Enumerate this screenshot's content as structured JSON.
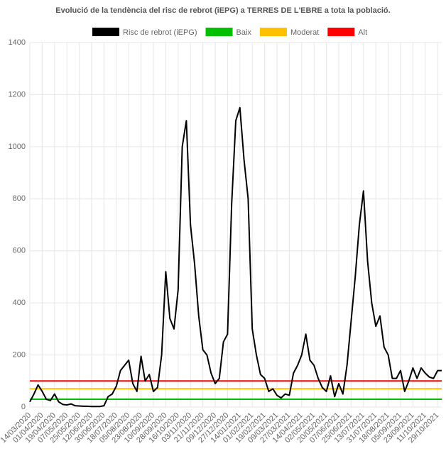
{
  "chart_data": {
    "type": "line",
    "title": "Evolució de la tendència del risc de rebrot (iEPG) a TERRES DE L'EBRE a tota la població.",
    "categories": [
      "14/03/2020",
      null,
      null,
      "01/04/2020",
      null,
      null,
      "19/04/2020",
      null,
      null,
      "07/05/2020",
      null,
      null,
      "25/05/2020",
      null,
      null,
      "12/06/2020",
      null,
      null,
      "30/06/2020",
      null,
      null,
      "18/07/2020",
      null,
      null,
      "05/08/2020",
      null,
      null,
      "23/08/2020",
      null,
      null,
      "10/09/2020",
      null,
      null,
      "28/09/2020",
      null,
      null,
      "16/10/2020",
      null,
      null,
      "03/11/2020",
      null,
      null,
      "21/11/2020",
      null,
      null,
      "09/12/2020",
      null,
      null,
      "27/12/2020",
      null,
      null,
      "14/01/2021",
      null,
      null,
      "01/02/2021",
      null,
      null,
      "19/02/2021",
      null,
      null,
      "09/03/2021",
      null,
      null,
      "27/03/2021",
      null,
      null,
      "14/04/2021",
      null,
      null,
      "02/05/2021",
      null,
      null,
      "20/05/2021",
      null,
      null,
      "07/06/2021",
      null,
      null,
      "25/06/2021",
      null,
      null,
      "13/07/2021",
      null,
      null,
      "31/07/2021",
      null,
      null,
      "18/08/2021",
      null,
      null,
      "05/09/2021",
      null,
      null,
      "23/09/2021",
      null,
      null,
      "11/10/2021",
      null,
      null,
      "29/10/2021",
      null
    ],
    "series": [
      {
        "name": "Risc de rebrot (iEPG)",
        "color": "#000000",
        "values": [
          20,
          50,
          85,
          60,
          30,
          25,
          50,
          20,
          10,
          8,
          12,
          5,
          4,
          3,
          3,
          2,
          2,
          2,
          5,
          40,
          50,
          80,
          140,
          160,
          180,
          90,
          60,
          195,
          100,
          125,
          60,
          75,
          200,
          520,
          340,
          300,
          450,
          1000,
          1100,
          700,
          550,
          350,
          220,
          200,
          130,
          90,
          110,
          250,
          280,
          780,
          1100,
          1150,
          950,
          800,
          300,
          200,
          125,
          110,
          60,
          70,
          45,
          35,
          50,
          45,
          130,
          160,
          200,
          280,
          180,
          160,
          110,
          75,
          60,
          120,
          40,
          90,
          50,
          160,
          330,
          500,
          700,
          830,
          560,
          400,
          310,
          350,
          230,
          200,
          110,
          110,
          140,
          60,
          100,
          150,
          110,
          150,
          130,
          115,
          110,
          140,
          140
        ]
      },
      {
        "name": "Baix",
        "color": "#00c000",
        "value": 30
      },
      {
        "name": "Moderat",
        "color": "#ffc000",
        "value": 70
      },
      {
        "name": "Alt",
        "color": "#ff0000",
        "value": 100
      }
    ],
    "ylim": [
      0,
      1400
    ],
    "yticks": [
      0,
      200,
      400,
      600,
      800,
      1000,
      1200,
      1400
    ],
    "grid": true
  }
}
